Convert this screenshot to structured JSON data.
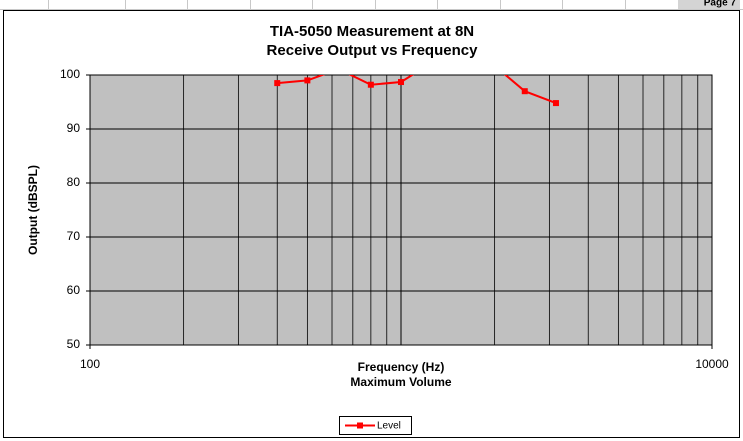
{
  "header": {
    "page": "Page 7"
  },
  "chart_data": {
    "type": "line",
    "title": "TIA-5050 Measurement at 8N",
    "subtitle": "Receive Output vs Frequency",
    "xlabel": [
      "Frequency (Hz)",
      "Maximum Volume"
    ],
    "ylabel": "Output (dBSPL)",
    "x": [
      400,
      500,
      630,
      800,
      1000,
      1250,
      1600,
      2000,
      2500,
      3150
    ],
    "series": [
      {
        "name": "Level",
        "color": "#ff0000",
        "values": [
          98.5,
          99,
          101.1,
          98.2,
          98.7,
          102.2,
          103,
          101.7,
          97,
          94.8
        ]
      }
    ],
    "xlim": [
      100,
      10000
    ],
    "xticks": [
      100,
      10000
    ],
    "xscale": "log",
    "ylim": [
      50,
      100
    ],
    "yticks": [
      50,
      60,
      70,
      80,
      90,
      100
    ],
    "grid": true,
    "legend": "bottom"
  }
}
